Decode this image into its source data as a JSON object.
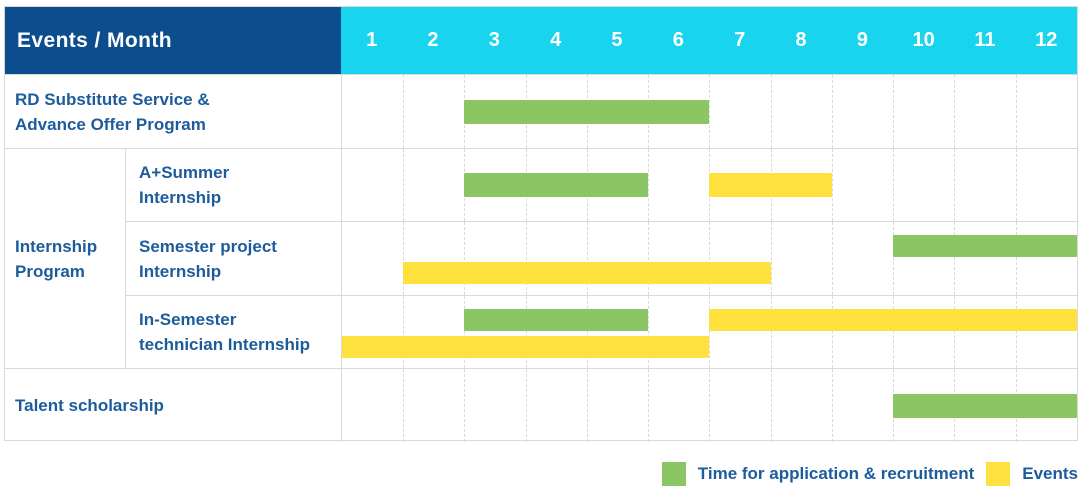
{
  "header": {
    "title": "Events / Month",
    "months": [
      "1",
      "2",
      "3",
      "4",
      "5",
      "6",
      "7",
      "8",
      "9",
      "10",
      "11",
      "12"
    ]
  },
  "colors": {
    "navy": "#0b4d8d",
    "cyan": "#18d4ef",
    "green": "#8cc563",
    "yellow": "#ffe13e",
    "text_blue": "#1d5c9c",
    "grid_gray": "#d9d9d9"
  },
  "legend": {
    "items": [
      {
        "name": "application",
        "label": "Time for application & recruitment",
        "color": "#8cc563"
      },
      {
        "name": "events",
        "label": "Events",
        "color": "#ffe13e"
      }
    ]
  },
  "chart_data": {
    "type": "bar",
    "variant": "gantt",
    "title": "Events / Month",
    "xlabel": "Month",
    "x_ticks": [
      1,
      2,
      3,
      4,
      5,
      6,
      7,
      8,
      9,
      10,
      11,
      12
    ],
    "x_range": [
      1,
      12
    ],
    "grid": "dashed-vertical",
    "legend_position": "bottom-right",
    "legend": [
      "Time for application & recruitment",
      "Events"
    ],
    "group_label": "Internship Program",
    "group_label_lines": [
      "Internship",
      "Program"
    ],
    "rows": [
      {
        "event": "RD Substitute Service & Advance Offer Program",
        "label_lines": [
          "RD Substitute Service &",
          "Advance Offer Program"
        ],
        "group": null,
        "lanes": 1,
        "bars": [
          {
            "kind": "application",
            "lane": 0,
            "start_month": 3,
            "end_month": 6
          }
        ]
      },
      {
        "event": "A+Summer Internship",
        "label_lines": [
          "A+Summer",
          "Internship"
        ],
        "group": "Internship Program",
        "lanes": 1,
        "bars": [
          {
            "kind": "application",
            "lane": 0,
            "start_month": 3,
            "end_month": 5
          },
          {
            "kind": "event",
            "lane": 0,
            "start_month": 7,
            "end_month": 8
          }
        ]
      },
      {
        "event": "Semester project Internship",
        "label_lines": [
          "Semester project",
          "Internship"
        ],
        "group": "Internship Program",
        "lanes": 2,
        "bars": [
          {
            "kind": "application",
            "lane": 0,
            "start_month": 10,
            "end_month": 12
          },
          {
            "kind": "event",
            "lane": 1,
            "start_month": 2,
            "end_month": 7
          }
        ]
      },
      {
        "event": "In-Semester technician Internship",
        "label_lines": [
          "In-Semester",
          "technician Internship"
        ],
        "group": "Internship Program",
        "lanes": 2,
        "bars": [
          {
            "kind": "application",
            "lane": 0,
            "start_month": 3,
            "end_month": 5
          },
          {
            "kind": "event",
            "lane": 0,
            "start_month": 7,
            "end_month": 12
          },
          {
            "kind": "event",
            "lane": 1,
            "start_month": 1,
            "end_month": 6
          }
        ]
      },
      {
        "event": "Talent scholarship",
        "label_lines": [
          "Talent scholarship"
        ],
        "group": null,
        "lanes": 1,
        "bars": [
          {
            "kind": "application",
            "lane": 0,
            "start_month": 10,
            "end_month": 12
          }
        ]
      }
    ]
  }
}
